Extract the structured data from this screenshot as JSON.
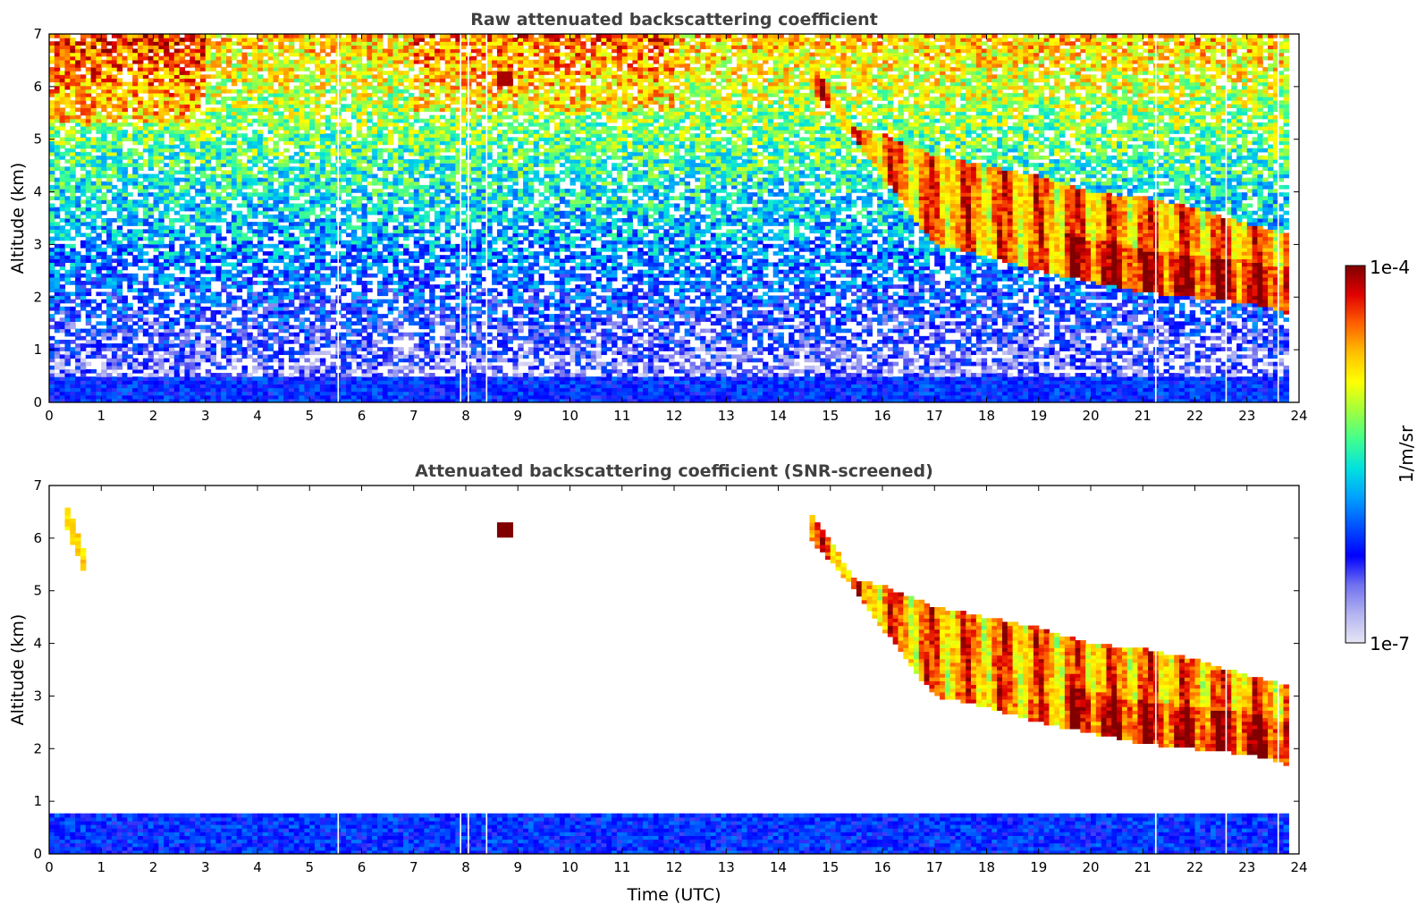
{
  "chart_data": [
    {
      "type": "heatmap",
      "title": "Raw attenuated backscattering coefficient",
      "xlabel": "",
      "ylabel": "Altitude (km)",
      "xlim": [
        0,
        24
      ],
      "ylim": [
        0,
        7
      ],
      "xticks": [
        "0",
        "1",
        "2",
        "3",
        "4",
        "5",
        "6",
        "7",
        "8",
        "9",
        "10",
        "11",
        "12",
        "13",
        "14",
        "15",
        "16",
        "17",
        "18",
        "19",
        "20",
        "21",
        "22",
        "23",
        "24"
      ],
      "yticks": [
        "0",
        "1",
        "2",
        "3",
        "4",
        "5",
        "6",
        "7"
      ],
      "screened": false,
      "data_end_time": 23.8,
      "gaps_time": [
        5.55,
        7.9,
        8.05,
        8.4,
        21.25,
        22.6,
        23.6
      ],
      "features": [
        {
          "kind": "boundary_layer",
          "t_start": 0,
          "t_end": 23.8,
          "alt_top": 0.5,
          "log10_beta": -6.2
        },
        {
          "kind": "cloud_streak",
          "t_start": 0.25,
          "t_end": 0.8,
          "alt_top": 6.8,
          "alt_bottom": 5.3,
          "log10_beta": -4.5
        },
        {
          "kind": "cloud_blob",
          "t": 8.75,
          "alt": 6.15,
          "log10_beta": -4.1
        },
        {
          "kind": "cirrus_layer",
          "t_points": [
            14.6,
            15.5,
            16.0,
            17.0,
            18.0,
            19.0,
            20.0,
            21.0,
            22.0,
            23.0,
            23.8
          ],
          "top_km": [
            6.5,
            5.2,
            5.1,
            4.7,
            4.5,
            4.3,
            4.0,
            3.9,
            3.7,
            3.4,
            3.2
          ],
          "base_km": [
            6.0,
            5.0,
            4.3,
            3.0,
            2.8,
            2.5,
            2.3,
            2.1,
            2.0,
            1.9,
            1.7
          ],
          "log10_beta": -5.0
        }
      ]
    },
    {
      "type": "heatmap",
      "title": "Attenuated backscattering coefficient (SNR-screened)",
      "xlabel": "Time (UTC)",
      "ylabel": "Altitude (km)",
      "xlim": [
        0,
        24
      ],
      "ylim": [
        0,
        7
      ],
      "xticks": [
        "0",
        "1",
        "2",
        "3",
        "4",
        "5",
        "6",
        "7",
        "8",
        "9",
        "10",
        "11",
        "12",
        "13",
        "14",
        "15",
        "16",
        "17",
        "18",
        "19",
        "20",
        "21",
        "22",
        "23",
        "24"
      ],
      "yticks": [
        "0",
        "1",
        "2",
        "3",
        "4",
        "5",
        "6",
        "7"
      ],
      "screened": true,
      "data_end_time": 23.8,
      "gaps_time": [
        5.55,
        7.9,
        8.05,
        8.4,
        21.25,
        22.6,
        23.6
      ],
      "features": [
        {
          "kind": "boundary_layer",
          "t_start": 0,
          "t_end": 23.8,
          "alt_top": 0.8,
          "log10_beta": -6.2
        },
        {
          "kind": "cloud_streak",
          "t_start": 0.3,
          "t_end": 0.7,
          "alt_top": 6.5,
          "alt_bottom": 5.5,
          "log10_beta": -4.8
        },
        {
          "kind": "cloud_blob",
          "t": 8.75,
          "alt": 6.15,
          "log10_beta": -4.0
        },
        {
          "kind": "cirrus_layer",
          "t_points": [
            14.6,
            15.5,
            16.0,
            17.0,
            18.0,
            19.0,
            20.0,
            21.0,
            22.0,
            23.0,
            23.8
          ],
          "top_km": [
            6.5,
            5.2,
            5.1,
            4.7,
            4.5,
            4.3,
            4.0,
            3.9,
            3.7,
            3.4,
            3.2
          ],
          "base_km": [
            6.0,
            5.0,
            4.3,
            3.0,
            2.8,
            2.5,
            2.3,
            2.1,
            2.0,
            1.9,
            1.7
          ],
          "log10_beta": -5.0
        }
      ]
    }
  ],
  "colorbar": {
    "label": "1/m/sr",
    "max_label": "1e-4",
    "min_label": "1e-7",
    "range": [
      1e-07,
      0.0001
    ],
    "scale": "log",
    "colormap": "jet",
    "colors": [
      "#e6e6f5",
      "#b3b3f0",
      "#7070f0",
      "#0000ff",
      "#0050ff",
      "#00a0ff",
      "#00e0e0",
      "#40ff90",
      "#a0ff40",
      "#ffff00",
      "#ffc000",
      "#ff6000",
      "#e00000",
      "#800000"
    ]
  }
}
